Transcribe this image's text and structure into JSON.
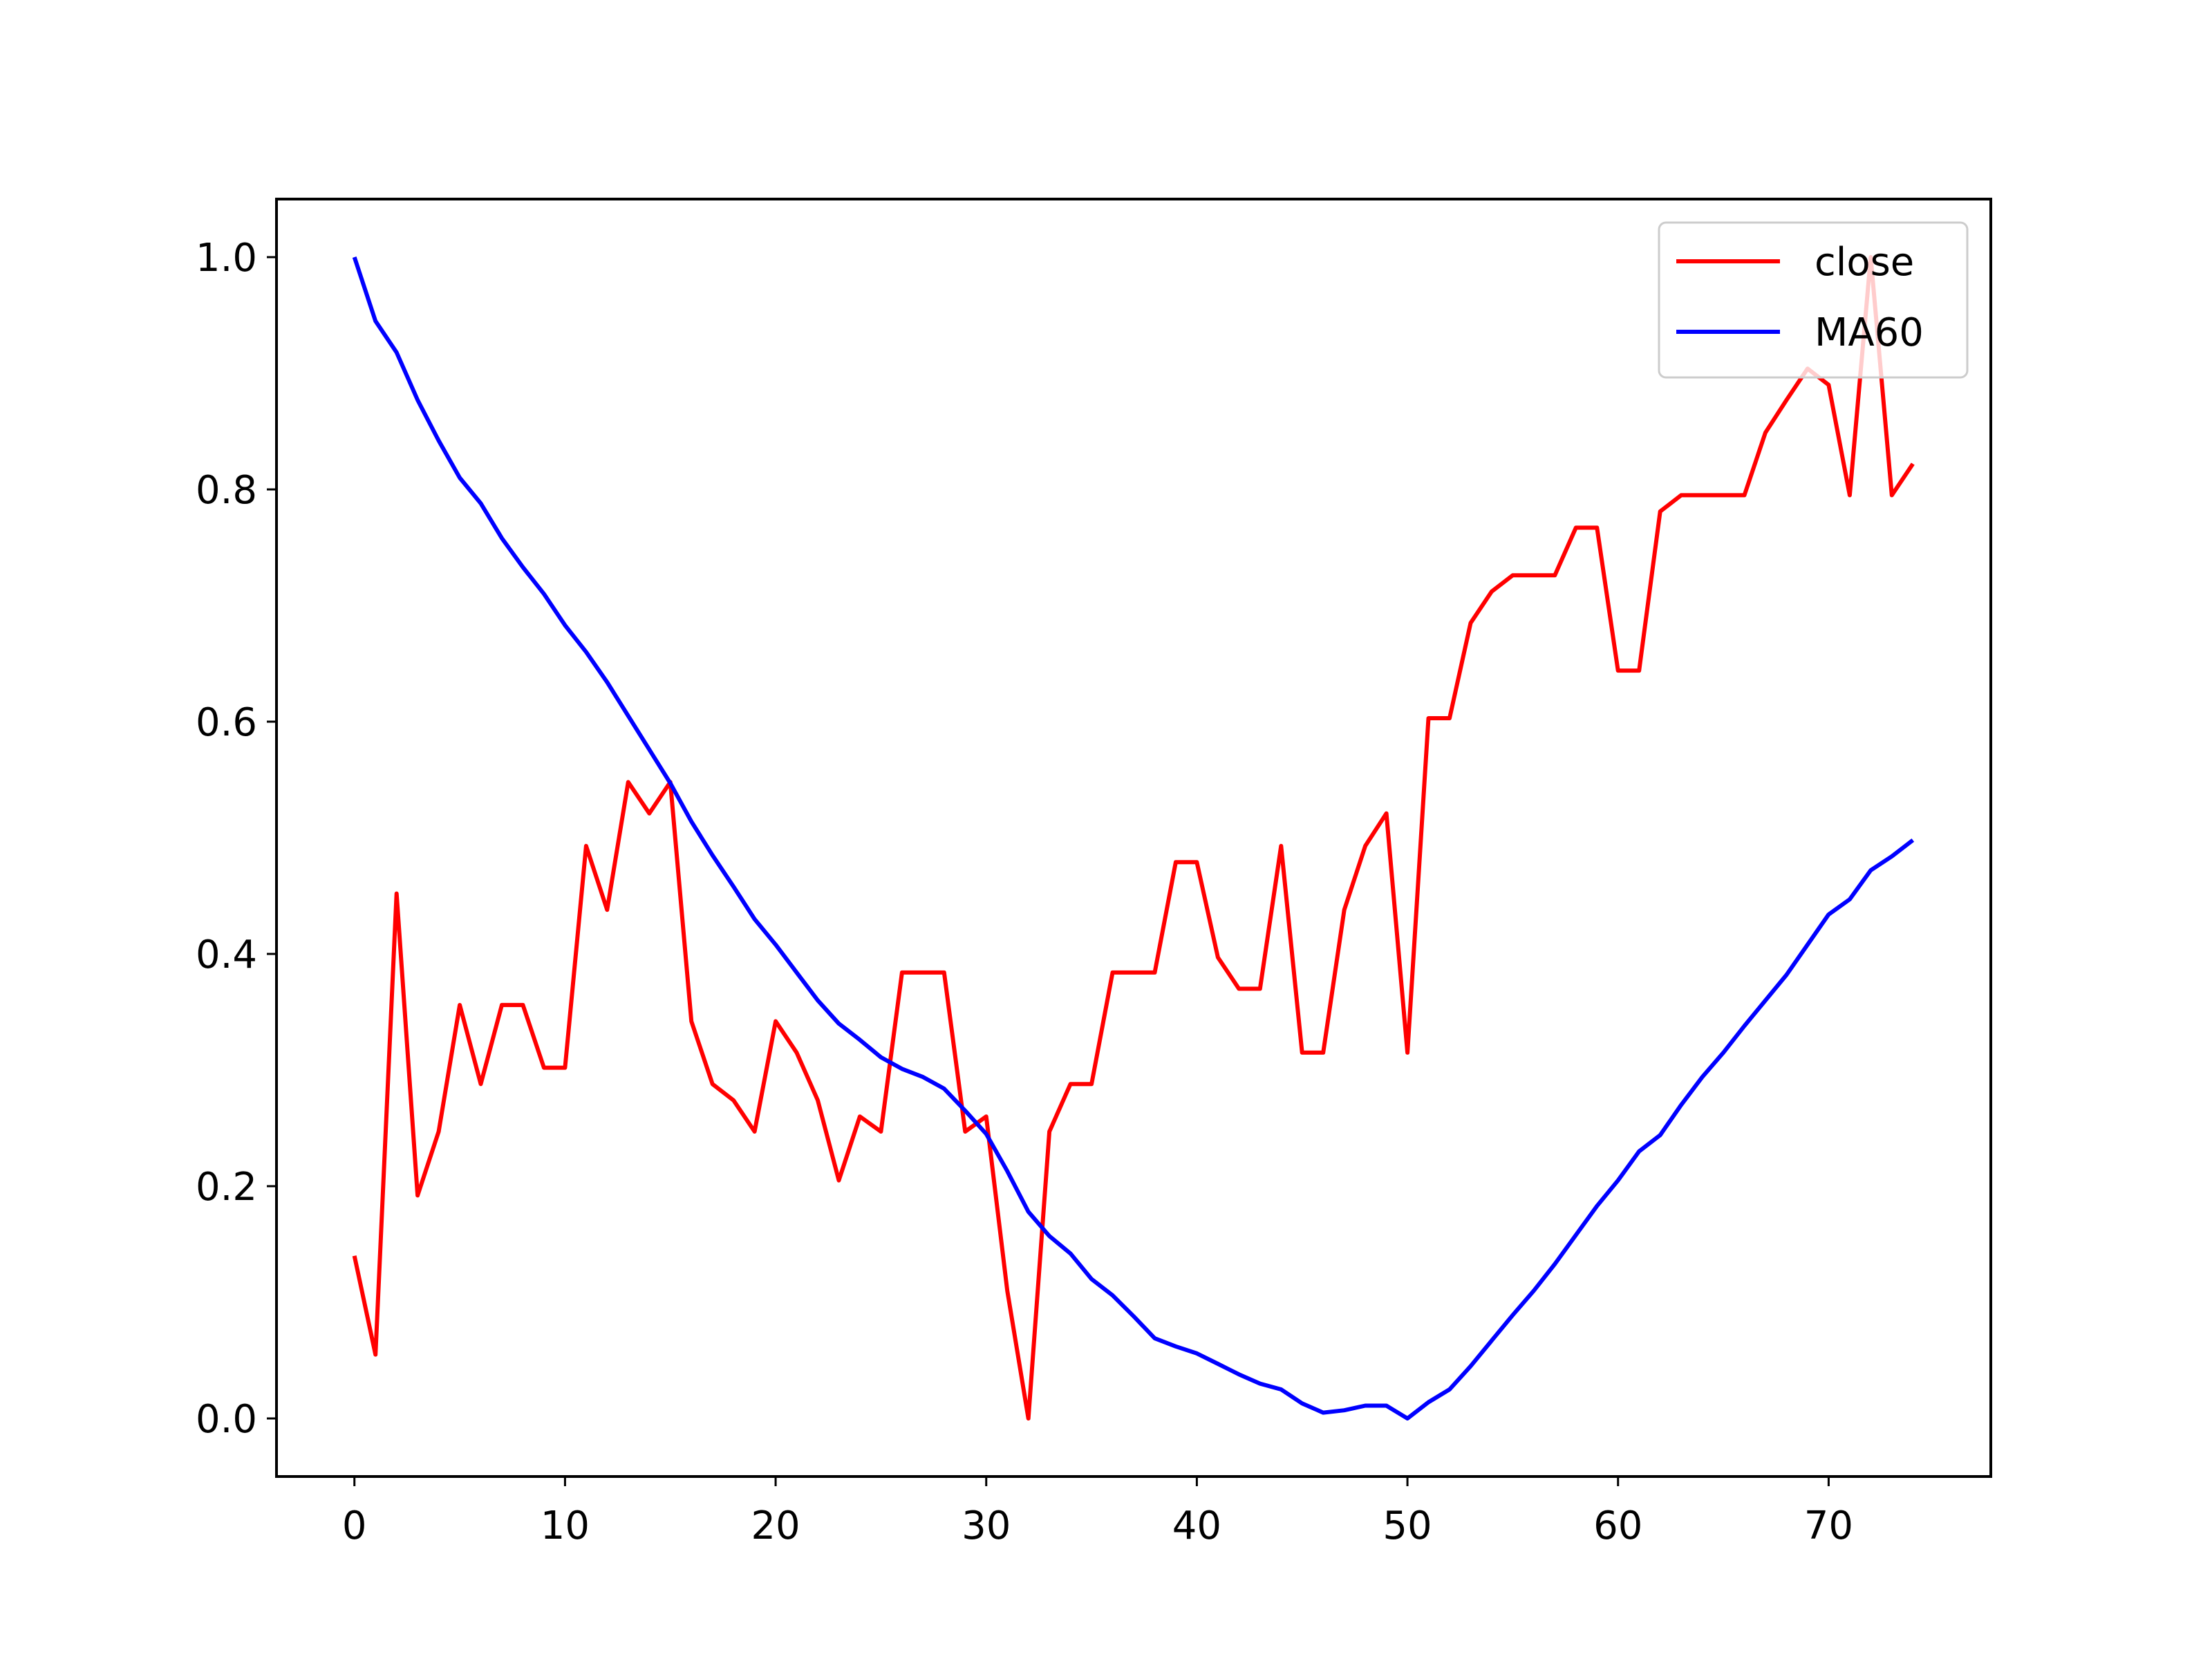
{
  "chart_data": {
    "type": "line",
    "title": "",
    "xlabel": "",
    "ylabel": "",
    "xlim": [
      -3.7,
      77.7
    ],
    "ylim": [
      -0.05,
      1.05
    ],
    "grid": false,
    "legend_position": "top-right",
    "x_ticks": [
      0,
      10,
      20,
      30,
      40,
      50,
      60,
      70
    ],
    "x_tick_labels": [
      "0",
      "10",
      "20",
      "30",
      "40",
      "50",
      "60",
      "70"
    ],
    "y_ticks": [
      0.0,
      0.2,
      0.4,
      0.6,
      0.8,
      1.0
    ],
    "y_tick_labels": [
      "0.0",
      "0.2",
      "0.4",
      "0.6",
      "0.8",
      "1.0"
    ],
    "x": [
      0,
      1,
      2,
      3,
      4,
      5,
      6,
      7,
      8,
      9,
      10,
      11,
      12,
      13,
      14,
      15,
      16,
      17,
      18,
      19,
      20,
      21,
      22,
      23,
      24,
      25,
      26,
      27,
      28,
      29,
      30,
      31,
      32,
      33,
      34,
      35,
      36,
      37,
      38,
      39,
      40,
      41,
      42,
      43,
      44,
      45,
      46,
      47,
      48,
      49,
      50,
      51,
      52,
      53,
      54,
      55,
      56,
      57,
      58,
      59,
      60,
      61,
      62,
      63,
      64,
      65,
      66,
      67,
      68,
      69,
      70,
      71,
      72,
      73,
      74
    ],
    "series": [
      {
        "name": "close",
        "color": "#ff0000",
        "values": [
          0.14,
          0.055,
          0.452,
          0.192,
          0.247,
          0.356,
          0.288,
          0.356,
          0.356,
          0.302,
          0.302,
          0.493,
          0.438,
          0.548,
          0.521,
          0.548,
          0.342,
          0.288,
          0.274,
          0.247,
          0.342,
          0.315,
          0.274,
          0.205,
          0.26,
          0.247,
          0.384,
          0.384,
          0.384,
          0.247,
          0.26,
          0.11,
          0.0,
          0.247,
          0.288,
          0.288,
          0.384,
          0.384,
          0.384,
          0.479,
          0.479,
          0.397,
          0.37,
          0.37,
          0.493,
          0.315,
          0.315,
          0.438,
          0.493,
          0.521,
          0.315,
          0.603,
          0.603,
          0.685,
          0.712,
          0.726,
          0.726,
          0.726,
          0.767,
          0.767,
          0.644,
          0.644,
          0.781,
          0.795,
          0.795,
          0.795,
          0.795,
          0.849,
          0.877,
          0.904,
          0.89,
          0.795,
          1.0,
          0.795,
          0.822
        ]
      },
      {
        "name": "MA60",
        "color": "#0000ff",
        "values": [
          1.0,
          0.945,
          0.918,
          0.877,
          0.842,
          0.81,
          0.788,
          0.758,
          0.733,
          0.71,
          0.683,
          0.66,
          0.634,
          0.605,
          0.576,
          0.547,
          0.514,
          0.485,
          0.458,
          0.43,
          0.408,
          0.384,
          0.36,
          0.34,
          0.326,
          0.311,
          0.301,
          0.294,
          0.284,
          0.265,
          0.245,
          0.213,
          0.178,
          0.157,
          0.142,
          0.12,
          0.106,
          0.088,
          0.069,
          0.062,
          0.056,
          0.047,
          0.038,
          0.03,
          0.025,
          0.013,
          0.005,
          0.007,
          0.011,
          0.011,
          0.0,
          0.014,
          0.025,
          0.045,
          0.067,
          0.089,
          0.11,
          0.133,
          0.158,
          0.183,
          0.205,
          0.23,
          0.244,
          0.27,
          0.294,
          0.315,
          0.338,
          0.36,
          0.382,
          0.408,
          0.434,
          0.447,
          0.472,
          0.484,
          0.498
        ]
      }
    ]
  }
}
